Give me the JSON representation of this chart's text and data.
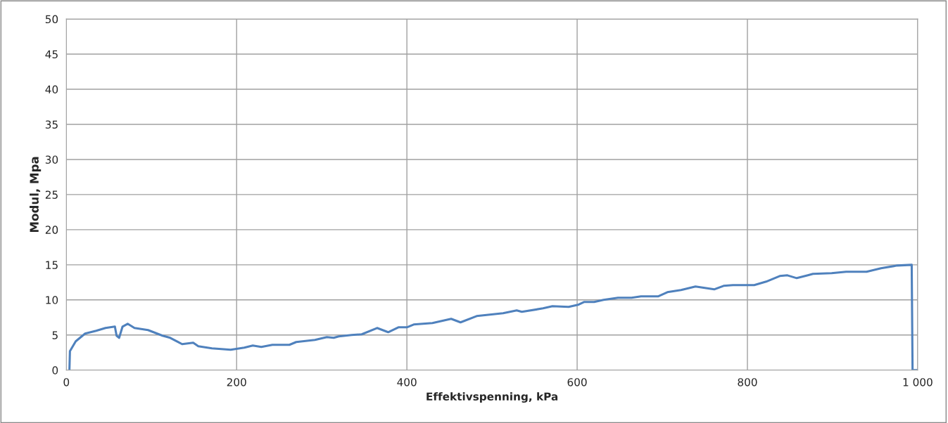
{
  "chart_data": {
    "type": "line",
    "xlabel": "Effektivspenning, kPa",
    "ylabel": "Modul, Mpa",
    "xlim": [
      0,
      1000
    ],
    "xticks": [
      0,
      200,
      400,
      600,
      800,
      {
        "value": 1000,
        "label": "1 000"
      }
    ],
    "ylim": [
      0,
      50
    ],
    "yticks": [
      0,
      5,
      10,
      15,
      20,
      25,
      30,
      35,
      40,
      45,
      50
    ],
    "grid": true,
    "marker": "none",
    "line_style": "solid",
    "series": [
      {
        "color": "#4f81bd",
        "x": [
          3.6,
          4.2,
          11,
          22,
          35,
          46,
          57,
          59,
          62,
          66,
          72,
          80,
          96,
          113,
          122,
          136,
          149,
          155,
          171,
          193,
          209,
          219,
          229,
          242,
          262,
          270,
          292,
          306,
          314,
          320,
          335,
          347,
          365,
          378,
          390,
          400,
          408,
          430,
          452,
          463,
          482,
          513,
          529,
          535,
          560,
          571,
          590,
          601,
          608,
          620,
          631,
          648,
          664,
          675,
          695,
          706,
          722,
          739,
          761,
          772,
          783,
          808,
          822,
          838,
          847,
          858,
          871,
          877,
          899,
          916,
          940,
          957,
          976,
          993,
          994,
          1000
        ],
        "values": [
          0,
          2.7,
          4.1,
          5.2,
          5.6,
          6.0,
          6.2,
          4.9,
          4.6,
          6.2,
          6.6,
          6.0,
          5.7,
          4.9,
          4.6,
          3.7,
          3.9,
          3.4,
          3.1,
          2.9,
          3.2,
          3.5,
          3.3,
          3.6,
          3.6,
          4.0,
          4.3,
          4.7,
          4.6,
          4.8,
          5.0,
          5.1,
          6.0,
          5.4,
          6.1,
          6.1,
          6.5,
          6.7,
          7.3,
          6.8,
          7.7,
          8.1,
          8.5,
          8.3,
          8.8,
          9.1,
          9.0,
          9.3,
          9.7,
          9.7,
          10.0,
          10.3,
          10.3,
          10.5,
          10.5,
          11.1,
          11.4,
          11.9,
          11.5,
          12.0,
          12.1,
          12.1,
          12.6,
          13.4,
          13.5,
          13.1,
          13.5,
          13.7,
          13.8,
          14.0,
          14.0,
          14.5,
          14.9,
          15.0,
          0,
          0
        ]
      }
    ]
  }
}
